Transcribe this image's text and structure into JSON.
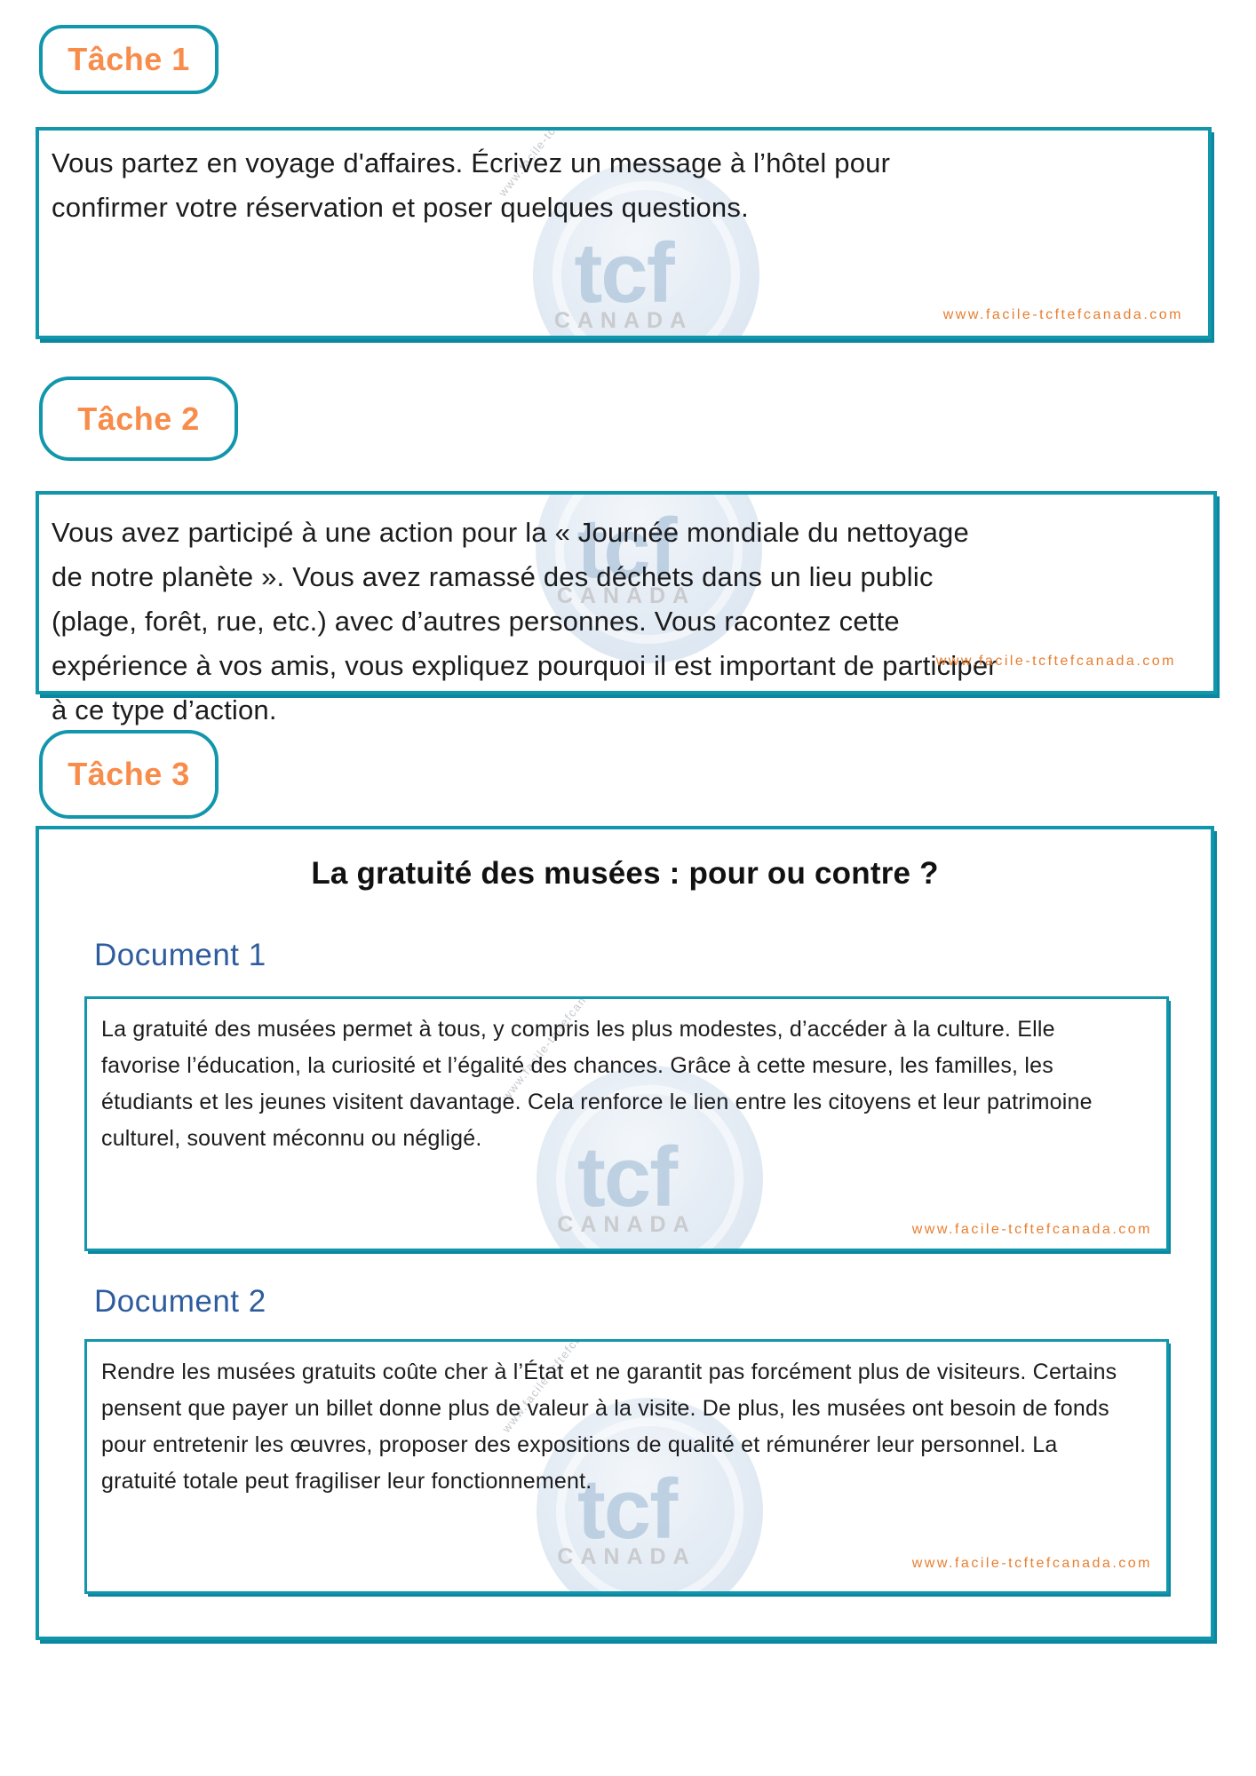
{
  "page": {
    "tasks": [
      {
        "label": "Tâche 1",
        "text": "Vous partez en voyage d'affaires. Écrivez un message à l’hôtel pour confirmer votre réservation et poser quelques questions."
      },
      {
        "label": "Tâche 2",
        "text": "Vous avez participé à une action pour la « Journée mondiale du nettoyage de notre planète ». Vous avez ramassé des déchets dans un lieu public (plage, forêt, rue, etc.) avec d’autres personnes. Vous racontez cette expérience à vos amis, vous expliquez pourquoi il est important de participer à ce type d’action."
      },
      {
        "label": "Tâche 3"
      }
    ],
    "task3": {
      "title": "La gratuité des musées : pour ou contre ?",
      "documents": [
        {
          "heading": "Document 1",
          "text": "La gratuité des musées permet à tous, y compris les plus modestes, d’accéder à la culture. Elle favorise l’éducation, la curiosité et l’égalité des chances. Grâce à cette mesure, les familles, les étudiants et les jeunes visitent davantage. Cela renforce le lien entre les citoyens et leur patrimoine culturel, souvent méconnu ou négligé."
        },
        {
          "heading": "Document 2",
          "text": "Rendre les musées gratuits coûte cher à l’État et ne garantit pas forcément plus de visiteurs. Certains pensent que payer un billet donne plus de valeur à la visite. De plus, les musées ont besoin de fonds pour entretenir les œuvres, proposer des expositions de qualité et rémunérer leur personnel. La gratuité totale peut fragiliser leur fonctionnement."
        }
      ]
    },
    "url": "www.facile-tcftefcanada.com",
    "watermark": {
      "logo": "tcf",
      "country": "CANADA",
      "arc_url": "www.facile-tcftefcanada.com"
    },
    "colors": {
      "teal_border": "#1296AC",
      "orange_label": "#F78C4B",
      "url_orange": "#E87E2F",
      "document_heading_blue": "#2E5C9E",
      "watermark_blue": "#B3C9DE"
    }
  }
}
